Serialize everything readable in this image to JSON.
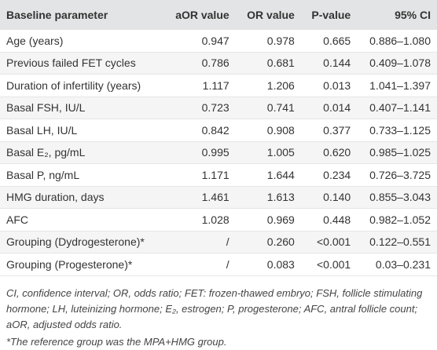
{
  "table": {
    "header": [
      "Baseline parameter",
      "aOR value",
      "OR value",
      "P-value",
      "95% CI"
    ],
    "rows": [
      [
        "Age (years)",
        "0.947",
        "0.978",
        "0.665",
        "0.886–1.080"
      ],
      [
        "Previous failed FET cycles",
        "0.786",
        "0.681",
        "0.144",
        "0.409–1.078"
      ],
      [
        "Duration of infertility (years)",
        "1.117",
        "1.206",
        "0.013",
        "1.041–1.397"
      ],
      [
        "Basal FSH, IU/L",
        "0.723",
        "0.741",
        "0.014",
        "0.407–1.141"
      ],
      [
        "Basal LH, IU/L",
        "0.842",
        "0.908",
        "0.377",
        "0.733–1.125"
      ],
      [
        "Basal E₂, pg/mL",
        "0.995",
        "1.005",
        "0.620",
        "0.985–1.025"
      ],
      [
        "Basal P, ng/mL",
        "1.171",
        "1.644",
        "0.234",
        "0.726–3.725"
      ],
      [
        "HMG duration, days",
        "1.461",
        "1.613",
        "0.140",
        "0.855–3.043"
      ],
      [
        "AFC",
        "1.028",
        "0.969",
        "0.448",
        "0.982–1.052"
      ],
      [
        "Grouping (Dydrogesterone)*",
        "/",
        "0.260",
        "<0.001",
        "0.122–0.551"
      ],
      [
        "Grouping (Progesterone)*",
        "/",
        "0.083",
        "<0.001",
        "0.03–0.231"
      ]
    ],
    "notes": [
      "CI, confidence interval; OR, odds ratio; FET: frozen-thawed embryo; FSH, follicle stimulating hormone; LH, luteinizing hormone; E₂, estrogen; P, progesterone; AFC, antral follicle count; aOR, adjusted odds ratio.",
      "*The reference group was the MPA+HMG group."
    ]
  }
}
